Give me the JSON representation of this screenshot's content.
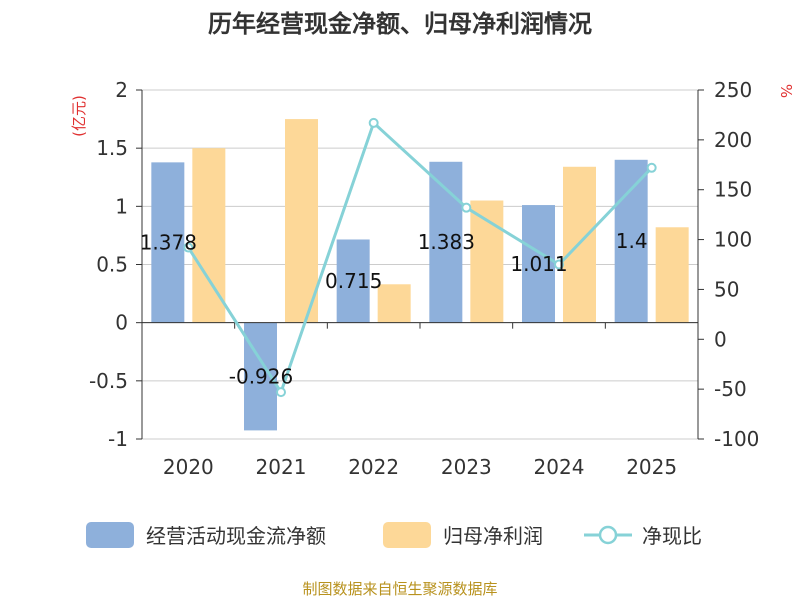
{
  "title": "历年经营现金净额、归母净利润情况",
  "source": "制图数据来自恒生聚源数据库",
  "left_unit": "(亿元)",
  "right_unit": "%",
  "colors": {
    "cash": "#8eb0db",
    "profit": "#fdd898",
    "ratio": "#86d2d7",
    "red": "#e03030",
    "source": "#b8921e"
  },
  "chart_data": {
    "type": "bar",
    "title": "历年经营现金净额、归母净利润情况",
    "categories": [
      "2020",
      "2021",
      "2022",
      "2023",
      "2024",
      "2025"
    ],
    "series": [
      {
        "name": "经营活动现金流净额",
        "kind": "bar",
        "axis": "left",
        "values": [
          1.378,
          -0.926,
          0.715,
          1.383,
          1.011,
          1.4
        ],
        "labels": [
          "1.378",
          "-0.926",
          "0.715",
          "1.383",
          "1.011",
          "1.4"
        ]
      },
      {
        "name": "归母净利润",
        "kind": "bar",
        "axis": "left",
        "values": [
          1.5,
          1.75,
          0.33,
          1.05,
          1.34,
          0.82
        ]
      },
      {
        "name": "净现比",
        "kind": "line",
        "axis": "right",
        "values": [
          92,
          -53,
          217,
          132,
          75,
          172
        ]
      }
    ],
    "y_left": {
      "min": -1,
      "max": 2,
      "ticks": [
        -1,
        -0.5,
        0,
        0.5,
        1,
        1.5,
        2
      ],
      "tick_labels": [
        "-1",
        "-0.5",
        "0",
        "0.5",
        "1",
        "1.5",
        "2"
      ]
    },
    "y_right": {
      "min": -100,
      "max": 250,
      "ticks": [
        -100,
        -50,
        0,
        50,
        100,
        150,
        200,
        250
      ],
      "tick_labels": [
        "-100",
        "-50",
        "0",
        "50",
        "100",
        "150",
        "200",
        "250"
      ]
    },
    "grid": true,
    "legend_position": "bottom"
  }
}
